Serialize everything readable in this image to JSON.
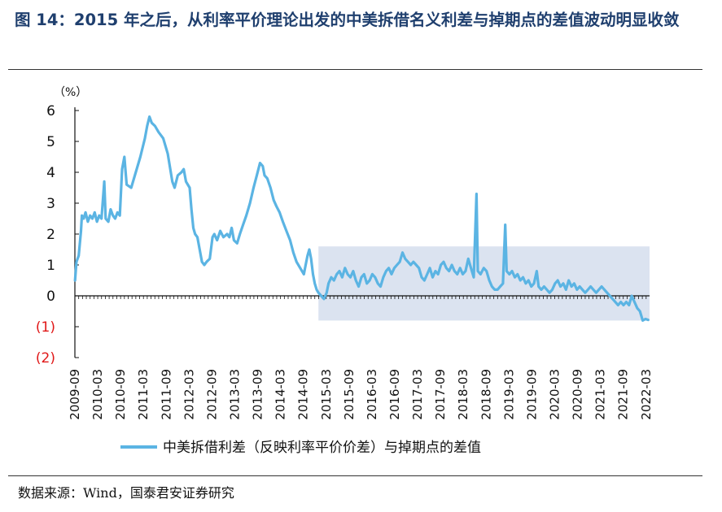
{
  "title": "图 14：2015 年之后，从利率平价理论出发的中美拆借名义利差与掉期点的差值波动明显收敛",
  "source": "数据来源：Wind，国泰君安证券研究",
  "chart_data": {
    "type": "line",
    "unit_label": "（%）",
    "ylim": [
      -2,
      6
    ],
    "y_ticks": [
      {
        "value": 6,
        "label": "6"
      },
      {
        "value": 5,
        "label": "5"
      },
      {
        "value": 4,
        "label": "4"
      },
      {
        "value": 3,
        "label": "3"
      },
      {
        "value": 2,
        "label": "2"
      },
      {
        "value": 1,
        "label": "1"
      },
      {
        "value": 0,
        "label": "0"
      },
      {
        "value": -1,
        "label": "(1)"
      },
      {
        "value": -2,
        "label": "(2)"
      }
    ],
    "x_categories": [
      "2009-09",
      "2010-03",
      "2010-09",
      "2011-03",
      "2011-09",
      "2012-03",
      "2012-09",
      "2013-03",
      "2013-09",
      "2014-03",
      "2014-09",
      "2015-03",
      "2015-09",
      "2016-03",
      "2016-09",
      "2017-03",
      "2017-09",
      "2018-03",
      "2018-09",
      "2019-03",
      "2019-09",
      "2020-03",
      "2020-09",
      "2021-03",
      "2021-09",
      "2022-03"
    ],
    "x_start": 2009.667,
    "x_end": 2022.25,
    "highlight_region": {
      "x_from": 2015.0,
      "x_to": 2022.25,
      "y_from": -0.8,
      "y_to": 1.6
    },
    "series": [
      {
        "name": "中美拆借利差（反映利率平价价差）与掉期点的差值",
        "color": "#5bb4e3",
        "points": [
          [
            2009.67,
            0.5
          ],
          [
            2009.7,
            1.1
          ],
          [
            2009.75,
            1.3
          ],
          [
            2009.8,
            2.1
          ],
          [
            2009.82,
            2.6
          ],
          [
            2009.86,
            2.5
          ],
          [
            2009.9,
            2.7
          ],
          [
            2009.95,
            2.4
          ],
          [
            2010.0,
            2.6
          ],
          [
            2010.05,
            2.5
          ],
          [
            2010.1,
            2.7
          ],
          [
            2010.15,
            2.4
          ],
          [
            2010.2,
            2.6
          ],
          [
            2010.25,
            2.5
          ],
          [
            2010.28,
            3.1
          ],
          [
            2010.31,
            3.7
          ],
          [
            2010.34,
            2.5
          ],
          [
            2010.4,
            2.4
          ],
          [
            2010.45,
            2.8
          ],
          [
            2010.5,
            2.6
          ],
          [
            2010.55,
            2.5
          ],
          [
            2010.6,
            2.7
          ],
          [
            2010.65,
            2.6
          ],
          [
            2010.7,
            4.1
          ],
          [
            2010.75,
            4.5
          ],
          [
            2010.8,
            3.6
          ],
          [
            2010.9,
            3.5
          ],
          [
            2011.0,
            4.0
          ],
          [
            2011.1,
            4.5
          ],
          [
            2011.2,
            5.1
          ],
          [
            2011.25,
            5.5
          ],
          [
            2011.3,
            5.8
          ],
          [
            2011.35,
            5.6
          ],
          [
            2011.42,
            5.5
          ],
          [
            2011.5,
            5.3
          ],
          [
            2011.6,
            5.1
          ],
          [
            2011.7,
            4.6
          ],
          [
            2011.8,
            3.7
          ],
          [
            2011.85,
            3.5
          ],
          [
            2011.92,
            3.9
          ],
          [
            2012.0,
            4.0
          ],
          [
            2012.05,
            4.1
          ],
          [
            2012.1,
            3.7
          ],
          [
            2012.18,
            3.5
          ],
          [
            2012.22,
            2.8
          ],
          [
            2012.26,
            2.2
          ],
          [
            2012.3,
            2.0
          ],
          [
            2012.35,
            1.9
          ],
          [
            2012.4,
            1.5
          ],
          [
            2012.45,
            1.1
          ],
          [
            2012.5,
            1.0
          ],
          [
            2012.55,
            1.1
          ],
          [
            2012.62,
            1.2
          ],
          [
            2012.68,
            1.9
          ],
          [
            2012.72,
            2.0
          ],
          [
            2012.78,
            1.8
          ],
          [
            2012.85,
            2.1
          ],
          [
            2012.92,
            1.9
          ],
          [
            2013.0,
            2.0
          ],
          [
            2013.05,
            1.9
          ],
          [
            2013.1,
            2.2
          ],
          [
            2013.15,
            1.8
          ],
          [
            2013.22,
            1.7
          ],
          [
            2013.28,
            2.0
          ],
          [
            2013.35,
            2.3
          ],
          [
            2013.42,
            2.6
          ],
          [
            2013.5,
            3.0
          ],
          [
            2013.58,
            3.5
          ],
          [
            2013.65,
            3.9
          ],
          [
            2013.72,
            4.3
          ],
          [
            2013.78,
            4.2
          ],
          [
            2013.82,
            3.9
          ],
          [
            2013.88,
            3.8
          ],
          [
            2013.95,
            3.5
          ],
          [
            2014.02,
            3.1
          ],
          [
            2014.08,
            2.9
          ],
          [
            2014.15,
            2.7
          ],
          [
            2014.22,
            2.4
          ],
          [
            2014.3,
            2.1
          ],
          [
            2014.38,
            1.8
          ],
          [
            2014.45,
            1.4
          ],
          [
            2014.52,
            1.1
          ],
          [
            2014.6,
            0.9
          ],
          [
            2014.68,
            0.7
          ],
          [
            2014.72,
            1.0
          ],
          [
            2014.76,
            1.3
          ],
          [
            2014.8,
            1.5
          ],
          [
            2014.84,
            1.2
          ],
          [
            2014.88,
            0.7
          ],
          [
            2014.92,
            0.4
          ],
          [
            2014.96,
            0.2
          ],
          [
            2015.0,
            0.1
          ],
          [
            2015.06,
            0.0
          ],
          [
            2015.12,
            -0.1
          ],
          [
            2015.18,
            0.1
          ],
          [
            2015.22,
            0.4
          ],
          [
            2015.28,
            0.6
          ],
          [
            2015.34,
            0.5
          ],
          [
            2015.4,
            0.7
          ],
          [
            2015.46,
            0.8
          ],
          [
            2015.52,
            0.6
          ],
          [
            2015.58,
            0.9
          ],
          [
            2015.64,
            0.7
          ],
          [
            2015.7,
            0.6
          ],
          [
            2015.76,
            0.8
          ],
          [
            2015.82,
            0.5
          ],
          [
            2015.88,
            0.3
          ],
          [
            2015.94,
            0.6
          ],
          [
            2016.0,
            0.7
          ],
          [
            2016.06,
            0.4
          ],
          [
            2016.12,
            0.5
          ],
          [
            2016.18,
            0.7
          ],
          [
            2016.24,
            0.6
          ],
          [
            2016.3,
            0.4
          ],
          [
            2016.36,
            0.3
          ],
          [
            2016.42,
            0.6
          ],
          [
            2016.48,
            0.8
          ],
          [
            2016.54,
            0.9
          ],
          [
            2016.6,
            0.7
          ],
          [
            2016.66,
            0.9
          ],
          [
            2016.72,
            1.0
          ],
          [
            2016.78,
            1.1
          ],
          [
            2016.84,
            1.4
          ],
          [
            2016.9,
            1.2
          ],
          [
            2016.96,
            1.1
          ],
          [
            2017.02,
            1.0
          ],
          [
            2017.08,
            1.1
          ],
          [
            2017.14,
            1.0
          ],
          [
            2017.2,
            0.9
          ],
          [
            2017.26,
            0.6
          ],
          [
            2017.32,
            0.5
          ],
          [
            2017.38,
            0.7
          ],
          [
            2017.44,
            0.9
          ],
          [
            2017.5,
            0.6
          ],
          [
            2017.56,
            0.8
          ],
          [
            2017.62,
            0.7
          ],
          [
            2017.68,
            1.0
          ],
          [
            2017.74,
            1.1
          ],
          [
            2017.8,
            0.9
          ],
          [
            2017.86,
            0.8
          ],
          [
            2017.92,
            1.0
          ],
          [
            2017.98,
            0.8
          ],
          [
            2018.04,
            0.7
          ],
          [
            2018.1,
            0.9
          ],
          [
            2018.16,
            0.7
          ],
          [
            2018.22,
            0.8
          ],
          [
            2018.28,
            1.2
          ],
          [
            2018.34,
            0.9
          ],
          [
            2018.4,
            0.6
          ],
          [
            2018.46,
            3.3
          ],
          [
            2018.49,
            0.8
          ],
          [
            2018.55,
            0.7
          ],
          [
            2018.62,
            0.9
          ],
          [
            2018.68,
            0.8
          ],
          [
            2018.74,
            0.5
          ],
          [
            2018.8,
            0.3
          ],
          [
            2018.86,
            0.2
          ],
          [
            2018.92,
            0.2
          ],
          [
            2018.98,
            0.3
          ],
          [
            2019.04,
            0.4
          ],
          [
            2019.09,
            2.3
          ],
          [
            2019.12,
            0.8
          ],
          [
            2019.18,
            0.7
          ],
          [
            2019.24,
            0.8
          ],
          [
            2019.3,
            0.6
          ],
          [
            2019.36,
            0.7
          ],
          [
            2019.42,
            0.5
          ],
          [
            2019.48,
            0.6
          ],
          [
            2019.54,
            0.4
          ],
          [
            2019.6,
            0.5
          ],
          [
            2019.66,
            0.3
          ],
          [
            2019.72,
            0.4
          ],
          [
            2019.78,
            0.8
          ],
          [
            2019.82,
            0.3
          ],
          [
            2019.88,
            0.2
          ],
          [
            2019.94,
            0.3
          ],
          [
            2020.0,
            0.2
          ],
          [
            2020.06,
            0.1
          ],
          [
            2020.12,
            0.2
          ],
          [
            2020.18,
            0.4
          ],
          [
            2020.24,
            0.5
          ],
          [
            2020.3,
            0.3
          ],
          [
            2020.36,
            0.4
          ],
          [
            2020.42,
            0.2
          ],
          [
            2020.48,
            0.5
          ],
          [
            2020.54,
            0.3
          ],
          [
            2020.6,
            0.4
          ],
          [
            2020.66,
            0.2
          ],
          [
            2020.72,
            0.3
          ],
          [
            2020.78,
            0.2
          ],
          [
            2020.84,
            0.1
          ],
          [
            2020.9,
            0.2
          ],
          [
            2020.96,
            0.3
          ],
          [
            2021.02,
            0.2
          ],
          [
            2021.08,
            0.1
          ],
          [
            2021.14,
            0.2
          ],
          [
            2021.2,
            0.3
          ],
          [
            2021.26,
            0.2
          ],
          [
            2021.32,
            0.1
          ],
          [
            2021.38,
            0.0
          ],
          [
            2021.44,
            -0.1
          ],
          [
            2021.5,
            -0.2
          ],
          [
            2021.56,
            -0.3
          ],
          [
            2021.62,
            -0.2
          ],
          [
            2021.68,
            -0.3
          ],
          [
            2021.74,
            -0.2
          ],
          [
            2021.8,
            -0.3
          ],
          [
            2021.86,
            0.0
          ],
          [
            2021.92,
            -0.2
          ],
          [
            2021.98,
            -0.4
          ],
          [
            2022.04,
            -0.5
          ],
          [
            2022.1,
            -0.8
          ],
          [
            2022.16,
            -0.75
          ],
          [
            2022.22,
            -0.78
          ]
        ]
      }
    ]
  }
}
